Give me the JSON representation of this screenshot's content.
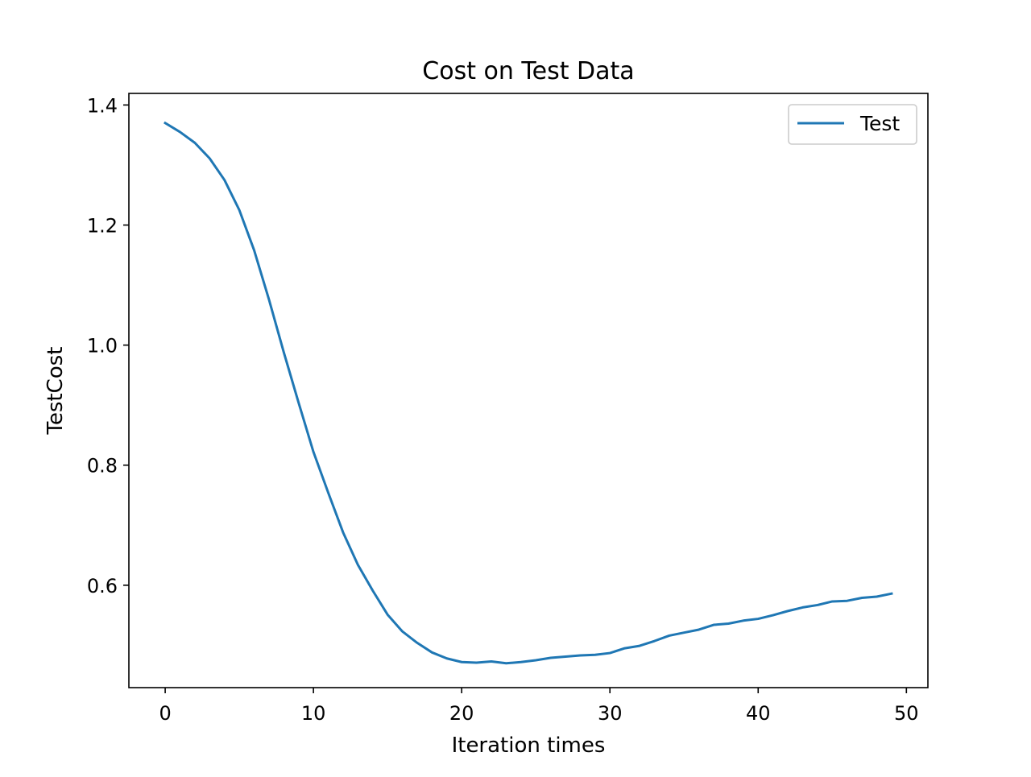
{
  "chart_data": {
    "type": "line",
    "title": "Cost on Test Data",
    "xlabel": "Iteration times",
    "ylabel": "TestCost",
    "xlim": [
      -2.45,
      51.45
    ],
    "ylim": [
      0.4294,
      1.4193
    ],
    "xticks": [
      0,
      10,
      20,
      30,
      40,
      50
    ],
    "xtick_labels": [
      "0",
      "10",
      "20",
      "30",
      "40",
      "50"
    ],
    "yticks": [
      0.6,
      0.8,
      1.0,
      1.2,
      1.4
    ],
    "ytick_labels": [
      "0.6",
      "0.8",
      "1.0",
      "1.2",
      "1.4"
    ],
    "grid": false,
    "legend_position": "top-right",
    "series": [
      {
        "name": "Test",
        "color": "#1f77b4",
        "x": [
          0,
          1,
          2,
          3,
          4,
          5,
          6,
          7,
          8,
          9,
          10,
          11,
          12,
          13,
          14,
          15,
          16,
          17,
          18,
          19,
          20,
          21,
          22,
          23,
          24,
          25,
          26,
          27,
          28,
          29,
          30,
          31,
          32,
          33,
          34,
          35,
          36,
          37,
          38,
          39,
          40,
          41,
          42,
          43,
          44,
          45,
          46,
          47,
          48,
          49
        ],
        "y": [
          1.37,
          1.355,
          1.337,
          1.311,
          1.275,
          1.225,
          1.158,
          1.076,
          0.988,
          0.904,
          0.822,
          0.754,
          0.688,
          0.634,
          0.591,
          0.551,
          0.523,
          0.504,
          0.488,
          0.478,
          0.472,
          0.471,
          0.473,
          0.47,
          0.472,
          0.475,
          0.479,
          0.481,
          0.483,
          0.484,
          0.487,
          0.495,
          0.499,
          0.507,
          0.516,
          0.521,
          0.526,
          0.534,
          0.536,
          0.541,
          0.544,
          0.55,
          0.557,
          0.563,
          0.567,
          0.573,
          0.574,
          0.579,
          0.581,
          0.586
        ]
      }
    ]
  }
}
